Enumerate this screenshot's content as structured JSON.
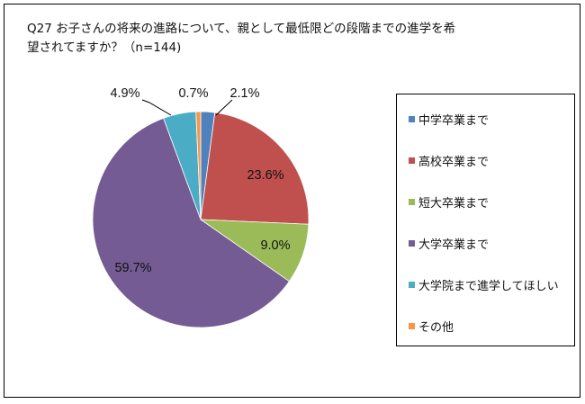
{
  "chart_data": {
    "type": "pie",
    "title": "Q27 お子さんの将来の進路について、親として最低限どの段階までの進学を希望されてますか？（n=144)",
    "title_lines": [
      "Q27 お子さんの将来の進路について、親として最低限どの段階までの進学を希",
      "望されてますか？（n=144)"
    ],
    "n": 144,
    "categories": [
      "中学卒業まで",
      "高校卒業まで",
      "短大卒業まで",
      "大学卒業まで",
      "大学院まで進学してほしい",
      "その他"
    ],
    "values": [
      2.1,
      23.6,
      9.0,
      59.7,
      4.9,
      0.7
    ],
    "labels": [
      "2.1%",
      "23.6%",
      "9.0%",
      "59.7%",
      "4.9%",
      "0.7%"
    ],
    "colors": [
      "#4F81BD",
      "#C0504D",
      "#9BBB59",
      "#745B93",
      "#4BACC6",
      "#F79646"
    ],
    "start_angle": "12 o'clock, clockwise",
    "legend_position": "right",
    "unit": "%"
  },
  "legend": {
    "items": [
      {
        "label": "中学卒業まで",
        "color": "#4F81BD"
      },
      {
        "label": "高校卒業まで",
        "color": "#C0504D"
      },
      {
        "label": "短大卒業まで",
        "color": "#9BBB59"
      },
      {
        "label": "大学卒業まで",
        "color": "#745B93"
      },
      {
        "label": "大学院まで進学してほしい",
        "color": "#4BACC6"
      },
      {
        "label": "その他",
        "color": "#F79646"
      }
    ]
  }
}
